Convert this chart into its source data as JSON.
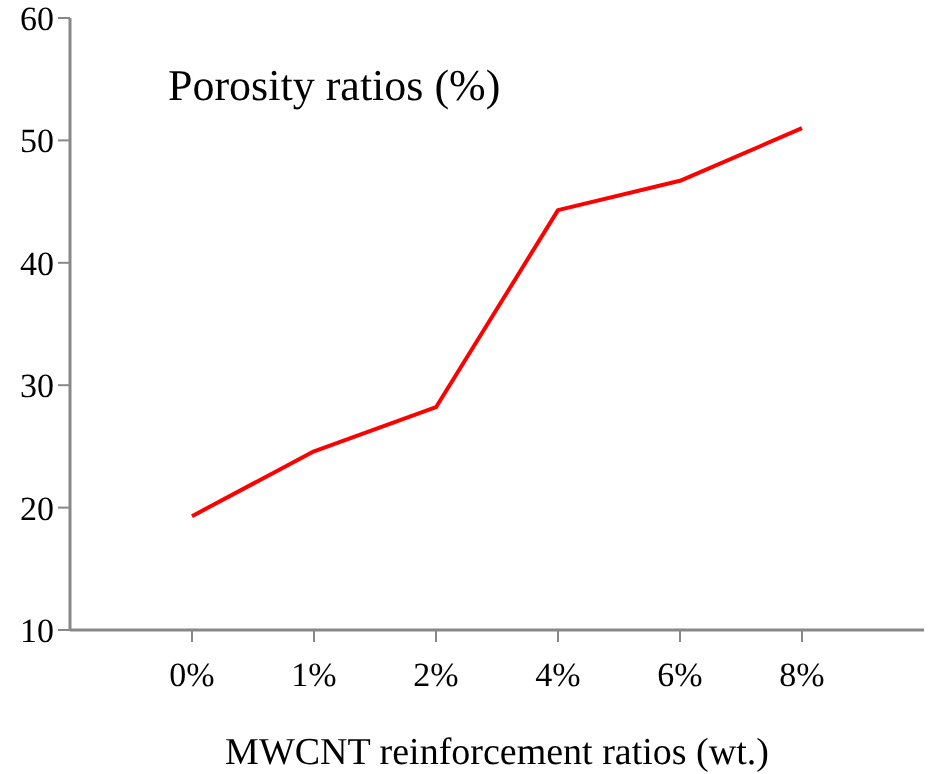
{
  "chart_data": {
    "type": "line",
    "title": "Porosity ratios (%)",
    "xlabel": "MWCNT reinforcement ratios (wt.)",
    "categories": [
      "0%",
      "1%",
      "2%",
      "4%",
      "6%",
      "8%"
    ],
    "series": [
      {
        "color": "#ff0000",
        "values": [
          19.3,
          24.6,
          28.2,
          44.3,
          46.7,
          51.0
        ]
      }
    ],
    "ylim": [
      10,
      60
    ],
    "yticks": [
      10,
      20,
      30,
      40,
      50,
      60
    ],
    "grid": false,
    "legend": false,
    "marker": "none",
    "line_style": "solid"
  }
}
